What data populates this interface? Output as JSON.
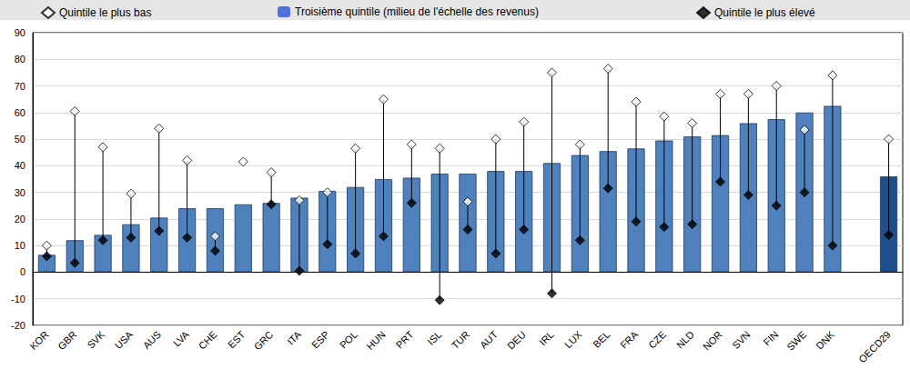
{
  "chart_data": {
    "type": "bar",
    "categories": [
      "KOR",
      "GBR",
      "SVK",
      "USA",
      "AUS",
      "LVA",
      "CHE",
      "EST",
      "GRC",
      "ITA",
      "ESP",
      "POL",
      "HUN",
      "PRT",
      "ISL",
      "TUR",
      "AUT",
      "DEU",
      "IRL",
      "LUX",
      "BEL",
      "FRA",
      "CZE",
      "NLD",
      "NOR",
      "SVN",
      "FIN",
      "SWE",
      "DNK",
      null,
      "OECD29"
    ],
    "series": [
      {
        "name": "Quintile le plus bas",
        "type": "scatter",
        "marker": "diamond",
        "color": "#ffffff",
        "values": [
          10,
          60.5,
          47,
          29.5,
          54,
          42,
          13.5,
          41.5,
          37.5,
          27,
          30,
          46.5,
          65,
          48,
          46.5,
          26.5,
          50,
          56.5,
          75,
          48,
          76.5,
          64,
          58.5,
          56,
          67,
          67,
          70,
          53.5,
          74,
          null,
          50
        ]
      },
      {
        "name": "Troisième quintile (milieu de l'échelle des revenus)",
        "type": "bar",
        "color": "#4f81bd",
        "colors": [
          "#4f81bd",
          "#4f81bd",
          "#4f81bd",
          "#4f81bd",
          "#4f81bd",
          "#4f81bd",
          "#4f81bd",
          "#4f81bd",
          "#4f81bd",
          "#4f81bd",
          "#4f81bd",
          "#4f81bd",
          "#4f81bd",
          "#4f81bd",
          "#4f81bd",
          "#4f81bd",
          "#4f81bd",
          "#4f81bd",
          "#4f81bd",
          "#4f81bd",
          "#4f81bd",
          "#4f81bd",
          "#4f81bd",
          "#4f81bd",
          "#4f81bd",
          "#4f81bd",
          "#4f81bd",
          "#4f81bd",
          "#4f81bd",
          null,
          "#1f4e8c"
        ],
        "values": [
          6.5,
          12,
          14,
          18,
          20.5,
          24,
          24,
          25.5,
          26,
          28,
          30.5,
          32,
          35,
          35.5,
          37,
          37,
          38,
          38,
          41,
          44,
          45.5,
          46.5,
          49.5,
          51,
          51.5,
          56,
          57.5,
          60,
          62.5,
          null,
          36
        ]
      },
      {
        "name": "Quintile le plus élevé",
        "type": "scatter",
        "marker": "diamond",
        "color": "#000000",
        "values": [
          6,
          3.5,
          12,
          13,
          15.5,
          13,
          8,
          null,
          25.5,
          0.5,
          10.5,
          7,
          13.5,
          26,
          -10.5,
          16,
          7,
          16,
          -8,
          12,
          31.5,
          19,
          17,
          18,
          34,
          29,
          25,
          30,
          10,
          null,
          14
        ]
      }
    ],
    "ylim": [
      -20,
      90
    ],
    "yticks": [
      -20,
      -10,
      0,
      10,
      20,
      30,
      40,
      50,
      60,
      70,
      80,
      90
    ],
    "grid": true,
    "legend": "top"
  }
}
